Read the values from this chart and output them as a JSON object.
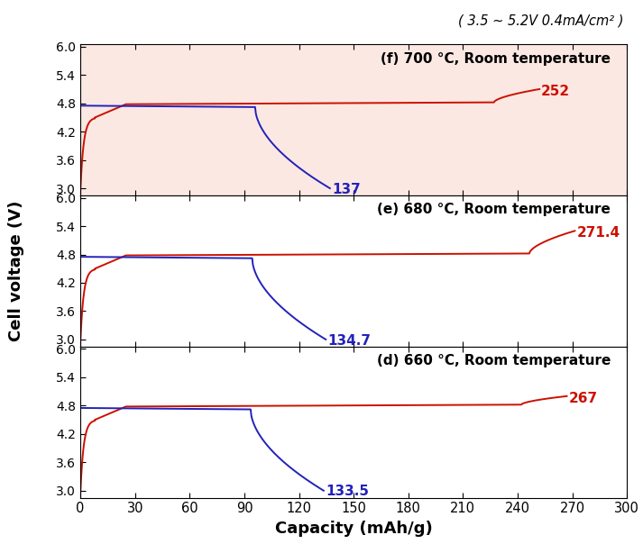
{
  "subtitle": "( 3.5 ~ 5.2V 0.4mA/cm² )",
  "ylabel": "Cell voltage (V)",
  "xlabel": "Capacity (mAh/g)",
  "xlim": [
    0,
    300
  ],
  "ylim": [
    2.85,
    6.05
  ],
  "yticks": [
    3.0,
    3.6,
    4.2,
    4.8,
    5.4,
    6.0
  ],
  "xticks": [
    0,
    30,
    60,
    90,
    120,
    150,
    180,
    210,
    240,
    270,
    300
  ],
  "panels": [
    {
      "label": "(f) 700 °C, Room temperature",
      "charge_end_cap": 252,
      "charge_end_v": 5.1,
      "discharge_end_cap": 137,
      "discharge_end_v": 3.0,
      "bg_color": "#fce8e3",
      "charge_color": "#cc1100",
      "discharge_color": "#2222bb"
    },
    {
      "label": "(e) 680 °C, Room temperature",
      "charge_end_cap": 271.4,
      "charge_end_v": 5.3,
      "discharge_end_cap": 134.7,
      "discharge_end_v": 3.0,
      "bg_color": "#ffffff",
      "charge_color": "#cc1100",
      "discharge_color": "#2222bb"
    },
    {
      "label": "(d) 660 °C, Room temperature",
      "charge_end_cap": 267,
      "charge_end_v": 5.0,
      "discharge_end_cap": 133.5,
      "discharge_end_v": 3.0,
      "bg_color": "#ffffff",
      "charge_color": "#cc1100",
      "discharge_color": "#2222bb"
    }
  ]
}
